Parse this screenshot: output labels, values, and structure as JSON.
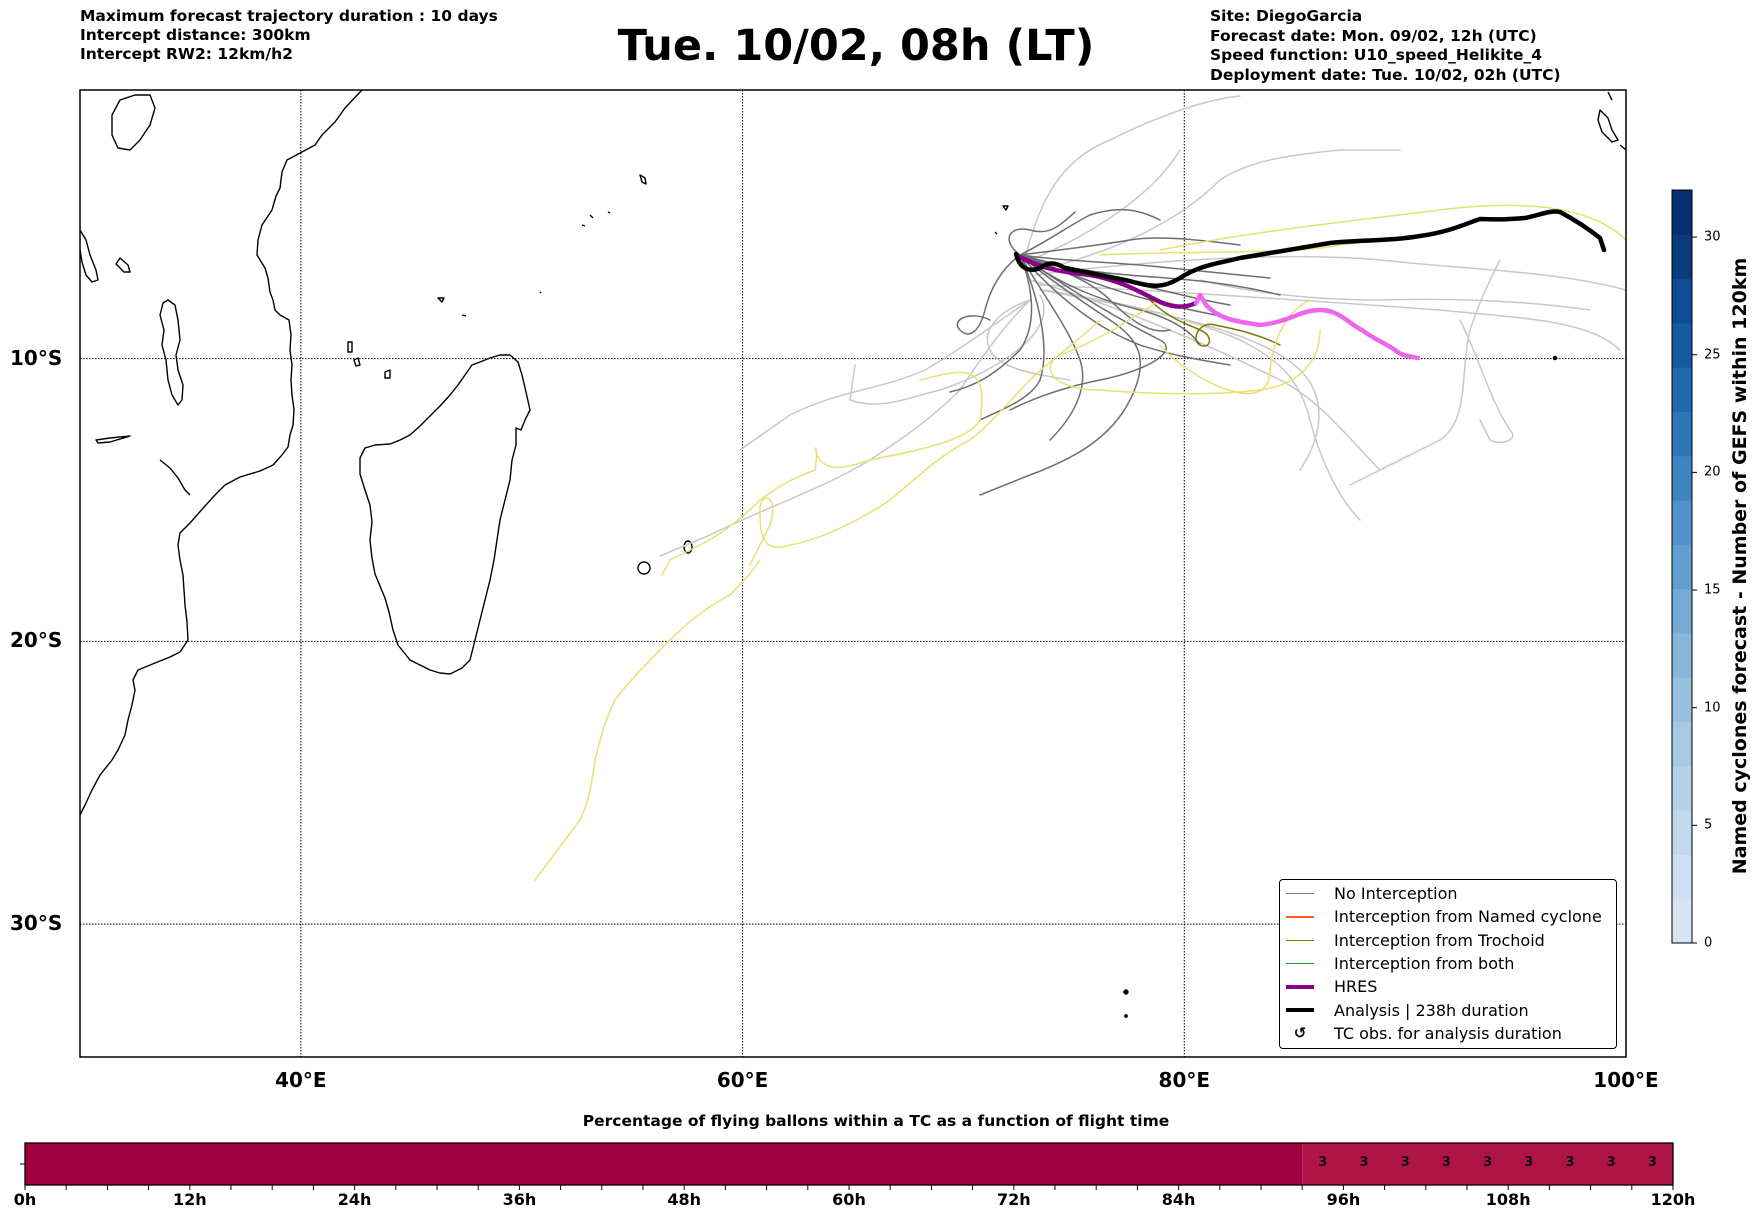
{
  "header": {
    "left_lines": [
      "Maximum forecast trajectory duration : 10 days",
      "Intercept distance: 300km",
      "Intercept RW2: 12km/h2"
    ],
    "title": "Tue. 10/02, 08h (LT)",
    "right_lines": [
      "Site: DiegoGarcia",
      "Forecast date: Mon. 09/02, 12h (UTC)",
      "Speed function: U10_speed_Helikite_4",
      "Deployment date: Tue. 10/02, 02h (UTC)"
    ]
  },
  "map": {
    "lon_range": [
      30,
      100
    ],
    "lat_range": [
      -0.5,
      -34.7
    ],
    "lon_ticks": [
      {
        "value": 40,
        "label": "40°E"
      },
      {
        "value": 60,
        "label": "60°E"
      },
      {
        "value": 80,
        "label": "80°E"
      },
      {
        "value": 100,
        "label": "100°E"
      }
    ],
    "lat_ticks": [
      {
        "value": -10,
        "label": "10°S"
      },
      {
        "value": -20,
        "label": "20°S"
      },
      {
        "value": -30,
        "label": "30°S"
      }
    ],
    "colors": {
      "no_interception": "#6e6e6e",
      "no_interception_light": "#c8c8c8",
      "interception_named": "#ff5a1e",
      "interception_trochoid": "#7a7a00",
      "interception_both": "#1e9e1e",
      "hres": "#8b008b",
      "hres_future": "#ee66ee",
      "analysis": "#000000",
      "yellow_track": "#e8e070"
    }
  },
  "legend": {
    "items": [
      {
        "label": "No Interception",
        "icon": "line-gray",
        "color": "#808080",
        "width": 1.2
      },
      {
        "label": "Interception from Named cyclone",
        "icon": "line-orange",
        "color": "#ff5a1e",
        "width": 1.2
      },
      {
        "label": "Interception from Trochoid",
        "icon": "line-olive",
        "color": "#808000",
        "width": 1.2
      },
      {
        "label": "Interception from both",
        "icon": "line-green",
        "color": "#1e9e1e",
        "width": 1.2
      },
      {
        "label": "HRES",
        "icon": "line-purple",
        "color": "#8b008b",
        "width": 4
      },
      {
        "label": "Analysis | 238h duration",
        "icon": "line-black",
        "color": "#000000",
        "width": 4
      },
      {
        "label": "TC obs. for analysis duration",
        "icon": "cyclone-icon",
        "color": "#000000",
        "glyph": "↺"
      }
    ]
  },
  "colorbar": {
    "label": "Named cyclones forecast - Number of GEFS within 120km",
    "min": 0,
    "max": 32,
    "ticks": [
      0,
      5,
      10,
      15,
      20,
      25,
      30
    ],
    "colors": [
      "#d6e4f3",
      "#cddff0",
      "#c3d8ec",
      "#b6d2e8",
      "#a7c9e3",
      "#98c1df",
      "#86b6da",
      "#74aad5",
      "#619ecf",
      "#4f91c8",
      "#3e84c1",
      "#2f76b8",
      "#2268ae",
      "#175aa2",
      "#0e4c93",
      "#083d7f",
      "#073070"
    ]
  },
  "bottom_bar": {
    "title": "Percentage of flying ballons within a TC as a function of flight time",
    "x_min": 0,
    "x_max": 120,
    "tick_labels": [
      "0h",
      "12h",
      "24h",
      "36h",
      "48h",
      "60h",
      "72h",
      "84h",
      "96h",
      "108h",
      "120h"
    ],
    "segments": [
      {
        "start": 0,
        "end": 93,
        "color": "#9e0040"
      },
      {
        "start": 93,
        "end": 120,
        "color": "#ae1445"
      }
    ],
    "value_labels": [
      {
        "at": 94.5,
        "text": "3"
      },
      {
        "at": 97.5,
        "text": "3"
      },
      {
        "at": 100.5,
        "text": "3"
      },
      {
        "at": 103.5,
        "text": "3"
      },
      {
        "at": 106.5,
        "text": "3"
      },
      {
        "at": 109.5,
        "text": "3"
      },
      {
        "at": 112.5,
        "text": "3"
      },
      {
        "at": 115.5,
        "text": "3"
      },
      {
        "at": 118.5,
        "text": "3"
      }
    ]
  }
}
